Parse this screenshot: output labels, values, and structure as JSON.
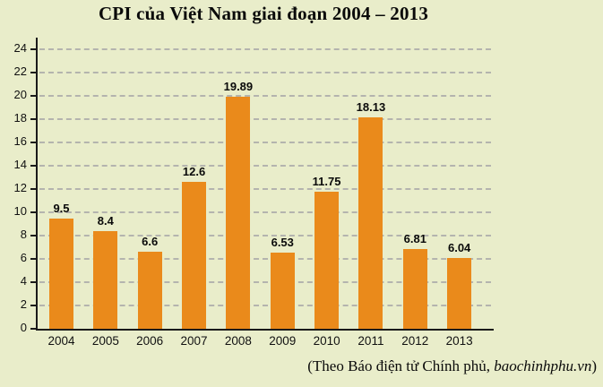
{
  "chart_data": {
    "type": "bar",
    "title": "CPI của Việt Nam giai đoạn 2004 – 2013",
    "categories": [
      "2004",
      "2005",
      "2006",
      "2007",
      "2008",
      "2009",
      "2010",
      "2011",
      "2012",
      "2013"
    ],
    "values": [
      9.5,
      8.4,
      6.6,
      12.6,
      19.89,
      6.53,
      11.75,
      18.13,
      6.81,
      6.04
    ],
    "value_labels": [
      "9.5",
      "8.4",
      "6.6",
      "12.6",
      "19.89",
      "6.53",
      "11.75",
      "18.13",
      "6.81",
      "6.04"
    ],
    "yticks": [
      0,
      2,
      4,
      6,
      8,
      10,
      12,
      14,
      16,
      18,
      20,
      22,
      24
    ],
    "ylim": [
      0,
      24
    ],
    "xlabel": "",
    "ylabel": "",
    "grid": "horizontal-dashed",
    "legend": "none",
    "bar_color": "#EA8A1B",
    "background_color": "#E9EDCA",
    "gridline_color": "#B4B4AE",
    "axis_color": "#1A1A1A"
  },
  "source": {
    "prefix": "(Theo Báo điện tử Chính phủ, ",
    "site": "baochinhphu.vn",
    "suffix": ")"
  }
}
